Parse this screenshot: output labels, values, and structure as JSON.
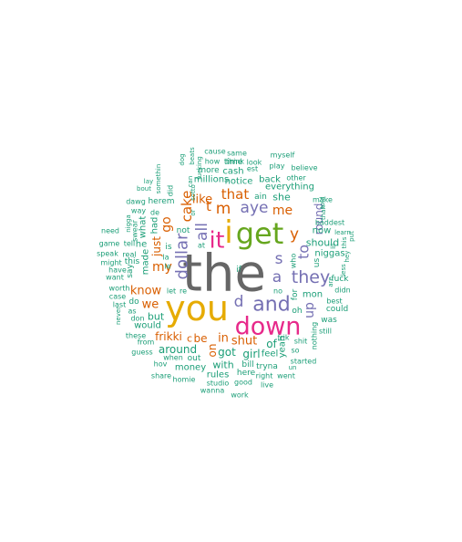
{
  "palette": {
    "gray": "#666666",
    "gold": "#E6AB02",
    "magenta": "#E7298A",
    "green": "#66A61E",
    "purple": "#7570B3",
    "orange": "#D95F02",
    "teal": "#1B9E77"
  },
  "words": [
    {
      "text": "the",
      "color": "gray"
    },
    {
      "text": "you",
      "color": "gold"
    },
    {
      "text": "down",
      "color": "magenta"
    },
    {
      "text": "get",
      "color": "green"
    },
    {
      "text": "i",
      "color": "gold"
    },
    {
      "text": "it",
      "color": "magenta"
    },
    {
      "text": "and",
      "color": "purple"
    },
    {
      "text": "they",
      "color": "purple"
    },
    {
      "text": "a",
      "color": "purple"
    },
    {
      "text": "all",
      "color": "purple"
    },
    {
      "text": "dollar",
      "color": "purple"
    },
    {
      "text": "aye",
      "color": "purple"
    },
    {
      "text": "that",
      "color": "orange"
    },
    {
      "text": "to",
      "color": "purple"
    },
    {
      "text": "s",
      "color": "purple"
    },
    {
      "text": "y",
      "color": "orange"
    },
    {
      "text": "d",
      "color": "purple"
    },
    {
      "text": "m",
      "color": "orange"
    },
    {
      "text": "t",
      "color": "orange"
    },
    {
      "text": "me",
      "color": "orange"
    },
    {
      "text": "cake",
      "color": "orange"
    },
    {
      "text": "like",
      "color": "orange"
    },
    {
      "text": "my",
      "color": "orange"
    },
    {
      "text": "know",
      "color": "orange"
    },
    {
      "text": "go",
      "color": "orange"
    },
    {
      "text": "we",
      "color": "orange"
    },
    {
      "text": "frikki",
      "color": "orange"
    },
    {
      "text": "shut",
      "color": "orange"
    },
    {
      "text": "in",
      "color": "orange"
    },
    {
      "text": "be",
      "color": "orange"
    },
    {
      "text": "c",
      "color": "orange"
    },
    {
      "text": "on",
      "color": "orange"
    },
    {
      "text": "up",
      "color": "purple"
    },
    {
      "text": "just",
      "color": "orange"
    },
    {
      "text": "round",
      "color": "purple"
    },
    {
      "text": "she",
      "color": "teal"
    },
    {
      "text": "ain",
      "color": "teal"
    },
    {
      "text": "notice",
      "color": "teal"
    },
    {
      "text": "back",
      "color": "teal"
    },
    {
      "text": "everything",
      "color": "teal"
    },
    {
      "text": "millions",
      "color": "teal"
    },
    {
      "text": "cash",
      "color": "teal"
    },
    {
      "text": "time",
      "color": "teal"
    },
    {
      "text": "more",
      "color": "teal"
    },
    {
      "text": "how",
      "color": "teal"
    },
    {
      "text": "cause",
      "color": "teal"
    },
    {
      "text": "same",
      "color": "teal"
    },
    {
      "text": "think",
      "color": "teal"
    },
    {
      "text": "look",
      "color": "teal"
    },
    {
      "text": "est",
      "color": "teal"
    },
    {
      "text": "myself",
      "color": "teal"
    },
    {
      "text": "play",
      "color": "teal"
    },
    {
      "text": "believe",
      "color": "teal"
    },
    {
      "text": "other",
      "color": "teal"
    },
    {
      "text": "make",
      "color": "teal"
    },
    {
      "text": "baddest",
      "color": "teal"
    },
    {
      "text": "learn",
      "color": "teal"
    },
    {
      "text": "should",
      "color": "teal"
    },
    {
      "text": "now",
      "color": "teal"
    },
    {
      "text": "niggas",
      "color": "teal"
    },
    {
      "text": "fuck",
      "color": "teal"
    },
    {
      "text": "best",
      "color": "teal"
    },
    {
      "text": "could",
      "color": "teal"
    },
    {
      "text": "didn",
      "color": "teal"
    },
    {
      "text": "was",
      "color": "teal"
    },
    {
      "text": "still",
      "color": "teal"
    },
    {
      "text": "mon",
      "color": "teal"
    },
    {
      "text": "oh",
      "color": "teal"
    },
    {
      "text": "us",
      "color": "teal"
    },
    {
      "text": "for",
      "color": "teal"
    },
    {
      "text": "who",
      "color": "teal"
    },
    {
      "text": "no",
      "color": "teal"
    },
    {
      "text": "if",
      "color": "teal"
    },
    {
      "text": "at",
      "color": "teal"
    },
    {
      "text": "not",
      "color": "teal"
    },
    {
      "text": "is",
      "color": "teal"
    },
    {
      "text": "la",
      "color": "teal"
    },
    {
      "text": "le",
      "color": "teal"
    },
    {
      "text": "made",
      "color": "teal"
    },
    {
      "text": "he",
      "color": "teal"
    },
    {
      "text": "what",
      "color": "teal"
    },
    {
      "text": "had",
      "color": "teal"
    },
    {
      "text": "herem",
      "color": "teal"
    },
    {
      "text": "dawg",
      "color": "teal"
    },
    {
      "text": "way",
      "color": "teal"
    },
    {
      "text": "need",
      "color": "teal"
    },
    {
      "text": "game",
      "color": "teal"
    },
    {
      "text": "tell",
      "color": "teal"
    },
    {
      "text": "speak",
      "color": "teal"
    },
    {
      "text": "real",
      "color": "teal"
    },
    {
      "text": "might",
      "color": "teal"
    },
    {
      "text": "this",
      "color": "teal"
    },
    {
      "text": "have",
      "color": "teal"
    },
    {
      "text": "say",
      "color": "teal"
    },
    {
      "text": "want",
      "color": "teal"
    },
    {
      "text": "worth",
      "color": "teal"
    },
    {
      "text": "case",
      "color": "teal"
    },
    {
      "text": "last",
      "color": "teal"
    },
    {
      "text": "do",
      "color": "teal"
    },
    {
      "text": "as",
      "color": "teal"
    },
    {
      "text": "don",
      "color": "teal"
    },
    {
      "text": "never",
      "color": "teal"
    },
    {
      "text": "but",
      "color": "teal"
    },
    {
      "text": "would",
      "color": "teal"
    },
    {
      "text": "these",
      "color": "teal"
    },
    {
      "text": "from",
      "color": "teal"
    },
    {
      "text": "guess",
      "color": "teal"
    },
    {
      "text": "hov",
      "color": "teal"
    },
    {
      "text": "share",
      "color": "teal"
    },
    {
      "text": "homie",
      "color": "teal"
    },
    {
      "text": "wanna",
      "color": "teal"
    },
    {
      "text": "studio",
      "color": "teal"
    },
    {
      "text": "work",
      "color": "teal"
    },
    {
      "text": "good",
      "color": "teal"
    },
    {
      "text": "live",
      "color": "teal"
    },
    {
      "text": "right",
      "color": "teal"
    },
    {
      "text": "went",
      "color": "teal"
    },
    {
      "text": "here",
      "color": "teal"
    },
    {
      "text": "rules",
      "color": "teal"
    },
    {
      "text": "with",
      "color": "teal"
    },
    {
      "text": "bill",
      "color": "teal"
    },
    {
      "text": "tryna",
      "color": "teal"
    },
    {
      "text": "started",
      "color": "teal"
    },
    {
      "text": "so",
      "color": "teal"
    },
    {
      "text": "un",
      "color": "teal"
    },
    {
      "text": "yeah",
      "color": "teal"
    },
    {
      "text": "feel",
      "color": "teal"
    },
    {
      "text": "girl",
      "color": "teal"
    },
    {
      "text": "got",
      "color": "teal"
    },
    {
      "text": "money",
      "color": "teal"
    },
    {
      "text": "out",
      "color": "teal"
    },
    {
      "text": "when",
      "color": "teal"
    },
    {
      "text": "around",
      "color": "teal"
    },
    {
      "text": "of",
      "color": "teal"
    },
    {
      "text": "frik",
      "color": "teal"
    },
    {
      "text": "shit",
      "color": "teal"
    },
    {
      "text": "nothing",
      "color": "teal"
    },
    {
      "text": "let",
      "color": "teal"
    },
    {
      "text": "re",
      "color": "teal"
    },
    {
      "text": "lay",
      "color": "teal"
    },
    {
      "text": "bout",
      "color": "teal"
    },
    {
      "text": "swear",
      "color": "teal"
    },
    {
      "text": "nigga",
      "color": "teal"
    },
    {
      "text": "de",
      "color": "teal"
    },
    {
      "text": "did",
      "color": "teal"
    },
    {
      "text": "somethin",
      "color": "teal"
    },
    {
      "text": "dog",
      "color": "teal"
    },
    {
      "text": "beats",
      "color": "teal"
    },
    {
      "text": "can",
      "color": "teal"
    },
    {
      "text": "fucking",
      "color": "teal"
    },
    {
      "text": "sotto",
      "color": "teal"
    },
    {
      "text": "or",
      "color": "teal"
    },
    {
      "text": "told",
      "color": "teal"
    },
    {
      "text": "than",
      "color": "teal"
    },
    {
      "text": "put",
      "color": "teal"
    },
    {
      "text": "this",
      "color": "teal"
    },
    {
      "text": "hey",
      "color": "teal"
    },
    {
      "text": "less",
      "color": "teal"
    },
    {
      "text": "are",
      "color": "teal"
    },
    {
      "text": "lil",
      "color": "teal"
    }
  ]
}
